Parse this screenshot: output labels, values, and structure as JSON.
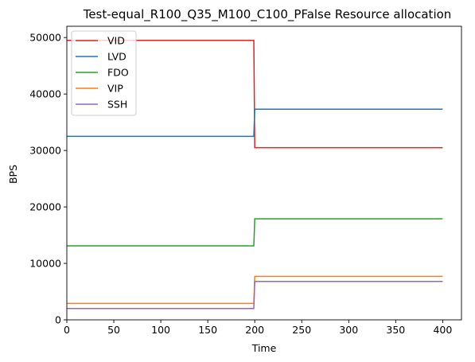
{
  "chart_data": {
    "type": "line",
    "title": "Test-equal_R100_Q35_M100_C100_PFalse Resource allocation",
    "xlabel": "Time",
    "ylabel": "BPS",
    "xlim": [
      0,
      420
    ],
    "ylim": [
      0,
      52000
    ],
    "xticks": [
      0,
      50,
      100,
      150,
      200,
      250,
      300,
      350,
      400
    ],
    "yticks": [
      0,
      10000,
      20000,
      30000,
      40000,
      50000
    ],
    "grid": false,
    "legend_position": "top-left",
    "series": [
      {
        "name": "VID",
        "color": "#d62728",
        "x": [
          0,
          199,
          200,
          400
        ],
        "y": [
          49500,
          49500,
          30500,
          30500
        ]
      },
      {
        "name": "LVD",
        "color": "#1f77b4",
        "x": [
          0,
          199,
          200,
          400
        ],
        "y": [
          32500,
          32500,
          37300,
          37300
        ]
      },
      {
        "name": "FDO",
        "color": "#2ca02c",
        "x": [
          0,
          199,
          200,
          400
        ],
        "y": [
          13100,
          13100,
          17900,
          17900
        ]
      },
      {
        "name": "VIP",
        "color": "#ff7f0e",
        "x": [
          0,
          199,
          200,
          400
        ],
        "y": [
          2900,
          2900,
          7700,
          7700
        ]
      },
      {
        "name": "SSH",
        "color": "#9467bd",
        "x": [
          0,
          199,
          200,
          400
        ],
        "y": [
          2000,
          2000,
          6800,
          6800
        ]
      }
    ]
  }
}
